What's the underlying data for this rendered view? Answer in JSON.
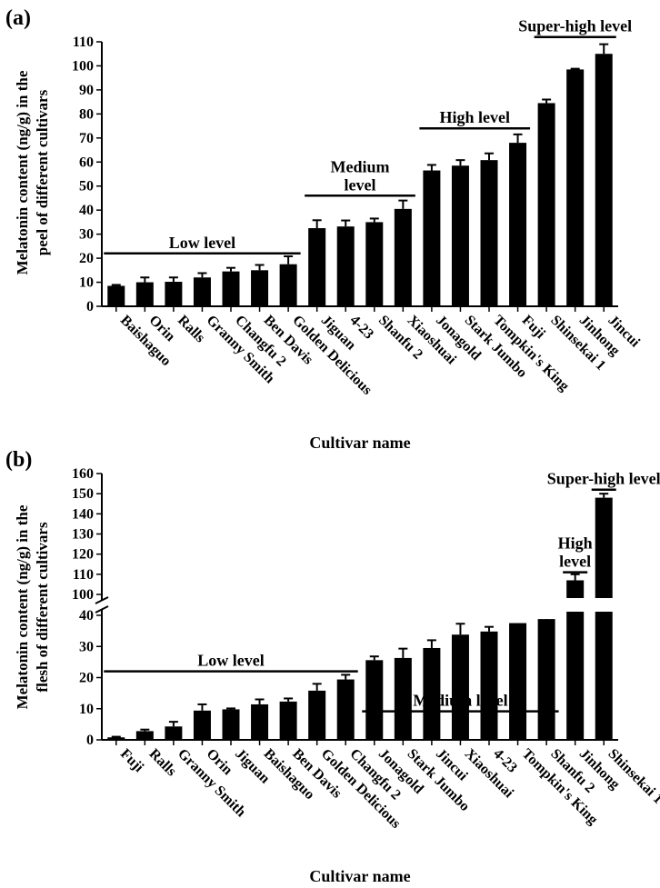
{
  "chart_data": [
    {
      "panel": "(a)",
      "type": "bar",
      "ylabel_line1": "Melatonin content (ng/g) in the",
      "ylabel_line2": "peel of different cultivars",
      "xlabel": "Cultivar name",
      "ylim": [
        0,
        110
      ],
      "yticks": [
        "0",
        "10",
        "20",
        "30",
        "40",
        "50",
        "60",
        "70",
        "80",
        "90",
        "100",
        "110"
      ],
      "categories": [
        "Baishaguo",
        "Orin",
        "Ralls",
        "Granny Smith",
        "Changfu 2",
        "Ben Davis",
        "Golden Delicious",
        "Jiguan",
        "4-23",
        "Shanfu 2",
        "Xiaoshuai",
        "Jonagold",
        "Stark Jumbo",
        "Tompkin's King",
        "Fuji",
        "Shinsekai 1",
        "Jinhong",
        "Jincui"
      ],
      "values": [
        8.5,
        10,
        10.2,
        12,
        14.5,
        15,
        17.5,
        32.5,
        33.2,
        35,
        40.5,
        56.5,
        58.5,
        60.8,
        68,
        84.5,
        98.5,
        105
      ],
      "errors": [
        0.4,
        2,
        1.8,
        1.8,
        1.5,
        2.2,
        3.3,
        3.3,
        2.5,
        1.5,
        3.5,
        2.3,
        2.3,
        2.8,
        3.5,
        1.5,
        0.3,
        4
      ],
      "groups": [
        {
          "lines": [
            "Low level"
          ],
          "from": 0,
          "to": 6,
          "y": 22
        },
        {
          "lines": [
            "Medium",
            "level"
          ],
          "from": 7,
          "to": 10,
          "y": 46
        },
        {
          "lines": [
            "High level"
          ],
          "from": 11,
          "to": 14,
          "y": 74
        },
        {
          "lines": [
            "Super-high level"
          ],
          "from": 15,
          "to": 17,
          "y": 112
        }
      ]
    },
    {
      "panel": "(b)",
      "type": "bar",
      "ylabel_line1": "Melatonin content (ng/g) in the",
      "ylabel_line2": "flesh of different cultivars",
      "xlabel": "Cultivar name",
      "ylim": [
        0,
        160
      ],
      "axis_break": [
        40,
        100
      ],
      "yticks_lower": [
        "0",
        "10",
        "20",
        "30",
        "40"
      ],
      "yticks_upper": [
        "100",
        "110",
        "120",
        "130",
        "140",
        "150",
        "160"
      ],
      "categories": [
        "Fuji",
        "Ralls",
        "Granny Smith",
        "Orin",
        "Jiguan",
        "Baishaguo",
        "Ben Davis",
        "Golden Delicious",
        "Changfu 2",
        "Jonagold",
        "Stark Jumbo",
        "Jincui",
        "Xiaoshuai",
        "4-23",
        "Tompkin's King",
        "Shanfu 2",
        "Jinhong",
        "Shinsekai 1"
      ],
      "values": [
        0.8,
        2.8,
        4.3,
        9.4,
        9.8,
        11.4,
        12.3,
        15.8,
        19.4,
        25.6,
        26.3,
        29.5,
        33.8,
        34.8,
        37.5,
        38.8,
        107,
        148
      ],
      "errors": [
        0.2,
        0.5,
        1.5,
        2,
        0.3,
        1.6,
        1,
        2.2,
        1.5,
        1.2,
        3,
        2.5,
        3.5,
        1.5,
        3,
        2,
        3,
        2
      ],
      "groups": [
        {
          "lines": [
            "Low level"
          ],
          "from": 0,
          "to": 8,
          "y": 22
        },
        {
          "lines": [
            "Medium level"
          ],
          "from": 9,
          "to": 15,
          "y": 42
        },
        {
          "lines": [
            "High",
            "level"
          ],
          "from": 16,
          "to": 16,
          "y": 111
        },
        {
          "lines": [
            "Super-high level"
          ],
          "from": 17,
          "to": 17,
          "y": 152
        }
      ]
    }
  ]
}
